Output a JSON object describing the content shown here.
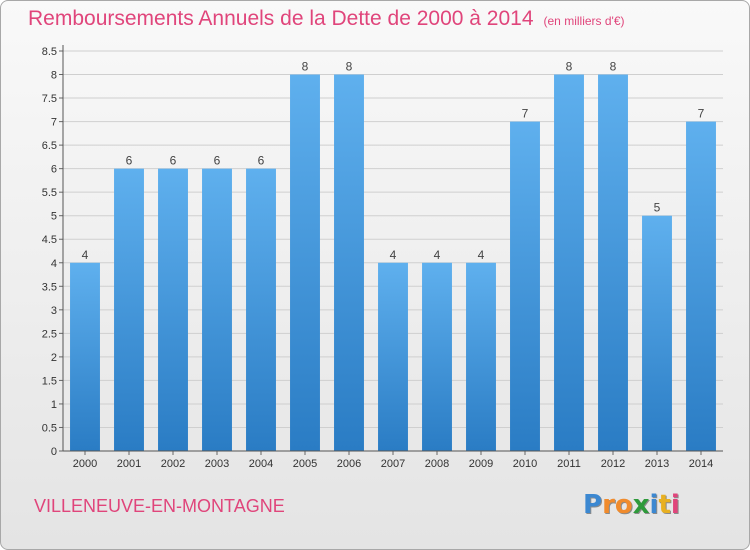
{
  "colors": {
    "accent": "#e0457b",
    "bar_light": "#5fb0ee",
    "bar_dark": "#2a7cc4",
    "grid": "#cfcfcf"
  },
  "town": "VILLENEUVE-EN-MONTAGNE",
  "logo": {
    "letters": [
      {
        "ch": "P",
        "color": "#3c88d1"
      },
      {
        "ch": "r",
        "color": "#f08b2c"
      },
      {
        "ch": "o",
        "color": "#f08b2c"
      },
      {
        "ch": "x",
        "color": "#2e9a3b"
      },
      {
        "ch": "i",
        "color": "#3c88d1"
      },
      {
        "ch": "t",
        "color": "#e8b021"
      },
      {
        "ch": "i",
        "color": "#e0457b"
      }
    ]
  },
  "chart_data": {
    "type": "bar",
    "title": "Remboursements Annuels de la Dette de 2000 à 2014",
    "subtitle": "(en milliers d'€)",
    "categories": [
      "2000",
      "2001",
      "2002",
      "2003",
      "2004",
      "2005",
      "2006",
      "2007",
      "2008",
      "2009",
      "2010",
      "2011",
      "2012",
      "2013",
      "2014"
    ],
    "values": [
      4,
      6,
      6,
      6,
      6,
      8,
      8,
      4,
      4,
      4,
      7,
      8,
      8,
      5,
      7
    ],
    "value_labels": [
      "4",
      "6",
      "6",
      "6",
      "6",
      "8",
      "8",
      "4",
      "4",
      "4",
      "7",
      "8",
      "8",
      "5",
      "7"
    ],
    "y_ticks": [
      "0",
      "0.5",
      "1",
      "1.5",
      "2",
      "2.5",
      "3",
      "3.5",
      "4",
      "4.5",
      "5",
      "5.5",
      "6",
      "6.5",
      "7",
      "7.5",
      "8",
      "8.5"
    ],
    "ylim": [
      0,
      8.5
    ],
    "grid": true
  }
}
